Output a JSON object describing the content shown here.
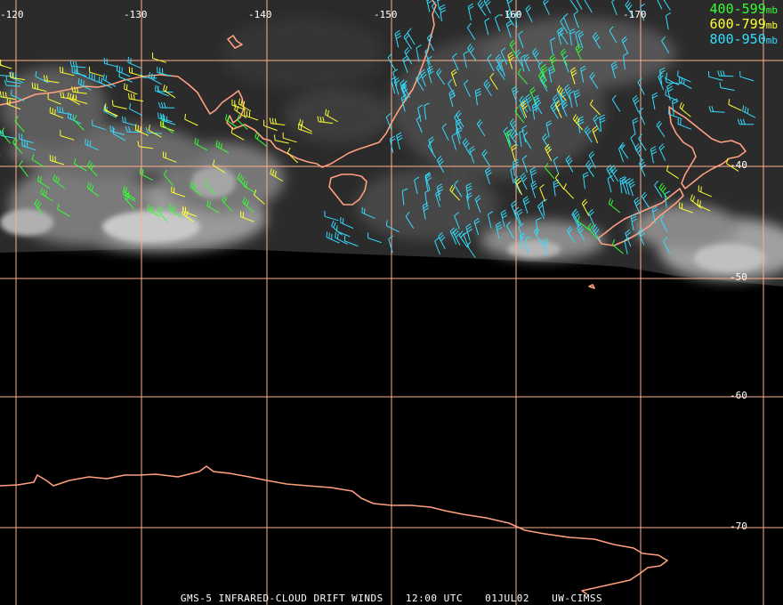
{
  "footer": {
    "product": "GMS-5 INFRARED-CLOUD DRIFT WINDS",
    "time": "12:00 UTC",
    "date": "01JUL02",
    "source": "UW-CIMSS"
  },
  "legend": [
    {
      "range": "400-599",
      "unit": "mb",
      "color": "#33ff33"
    },
    {
      "range": "600-799",
      "unit": "mb",
      "color": "#ffff33"
    },
    {
      "range": "800-950",
      "unit": "mb",
      "color": "#33ddff"
    }
  ],
  "longitude_labels": [
    "-120",
    "-130",
    "-140",
    "-150",
    "-160",
    "-170"
  ],
  "latitude_labels": [
    "-40",
    "-50",
    "-60",
    "-70"
  ],
  "colors": {
    "grid": "#ffb090",
    "coast": "#ffa080",
    "background": "#000000",
    "label": "#ffffff"
  }
}
